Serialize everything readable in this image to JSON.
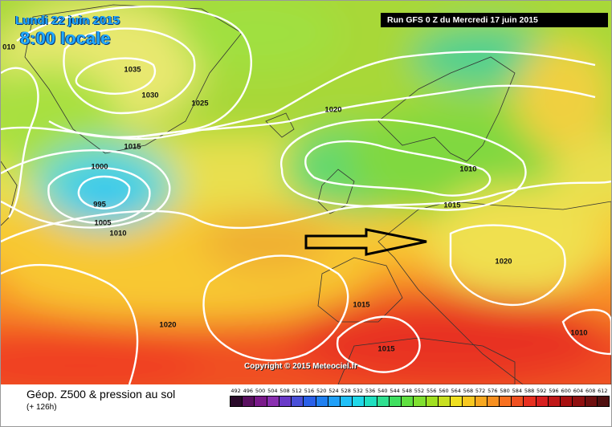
{
  "header": {
    "date_label": "Lundi 22 juin 2015",
    "time_label": "8:00 locale",
    "run_label": "Run GFS 0 Z du Mercredi 17 juin 2015"
  },
  "map": {
    "copyright": "Copyright © 2015 Meteociel.fr",
    "pressure_labels": [
      "010",
      "1035",
      "1030",
      "1025",
      "1020",
      "1015",
      "1000",
      "995",
      "1005",
      "1010",
      "1010",
      "1015",
      "1020",
      "1015",
      "1015",
      "1020",
      "1010"
    ],
    "arrow_icon": "right-arrow-icon"
  },
  "legend": {
    "title": "Géop. Z500 & pression au sol",
    "subtitle": "(+ 126h)",
    "scale_values": [
      "492",
      "496",
      "500",
      "504",
      "508",
      "512",
      "516",
      "520",
      "524",
      "528",
      "532",
      "536",
      "540",
      "544",
      "548",
      "552",
      "556",
      "560",
      "564",
      "568",
      "572",
      "576",
      "580",
      "584",
      "588",
      "592",
      "596",
      "600",
      "604",
      "608",
      "612"
    ],
    "scale_colors": [
      "#2a0a2a",
      "#5a1060",
      "#7a1a8a",
      "#8a30b0",
      "#6a3ac8",
      "#4a50d8",
      "#2a60e8",
      "#2080f0",
      "#20a0f8",
      "#20c0f8",
      "#20d8e8",
      "#20e0c0",
      "#30e090",
      "#40e060",
      "#60e040",
      "#80e030",
      "#a0e020",
      "#c8e020",
      "#f0e020",
      "#f8c820",
      "#f8a820",
      "#f89020",
      "#f87020",
      "#f05020",
      "#e83020",
      "#d82020",
      "#c01818",
      "#a81010",
      "#901010",
      "#701010",
      "#501010"
    ]
  }
}
